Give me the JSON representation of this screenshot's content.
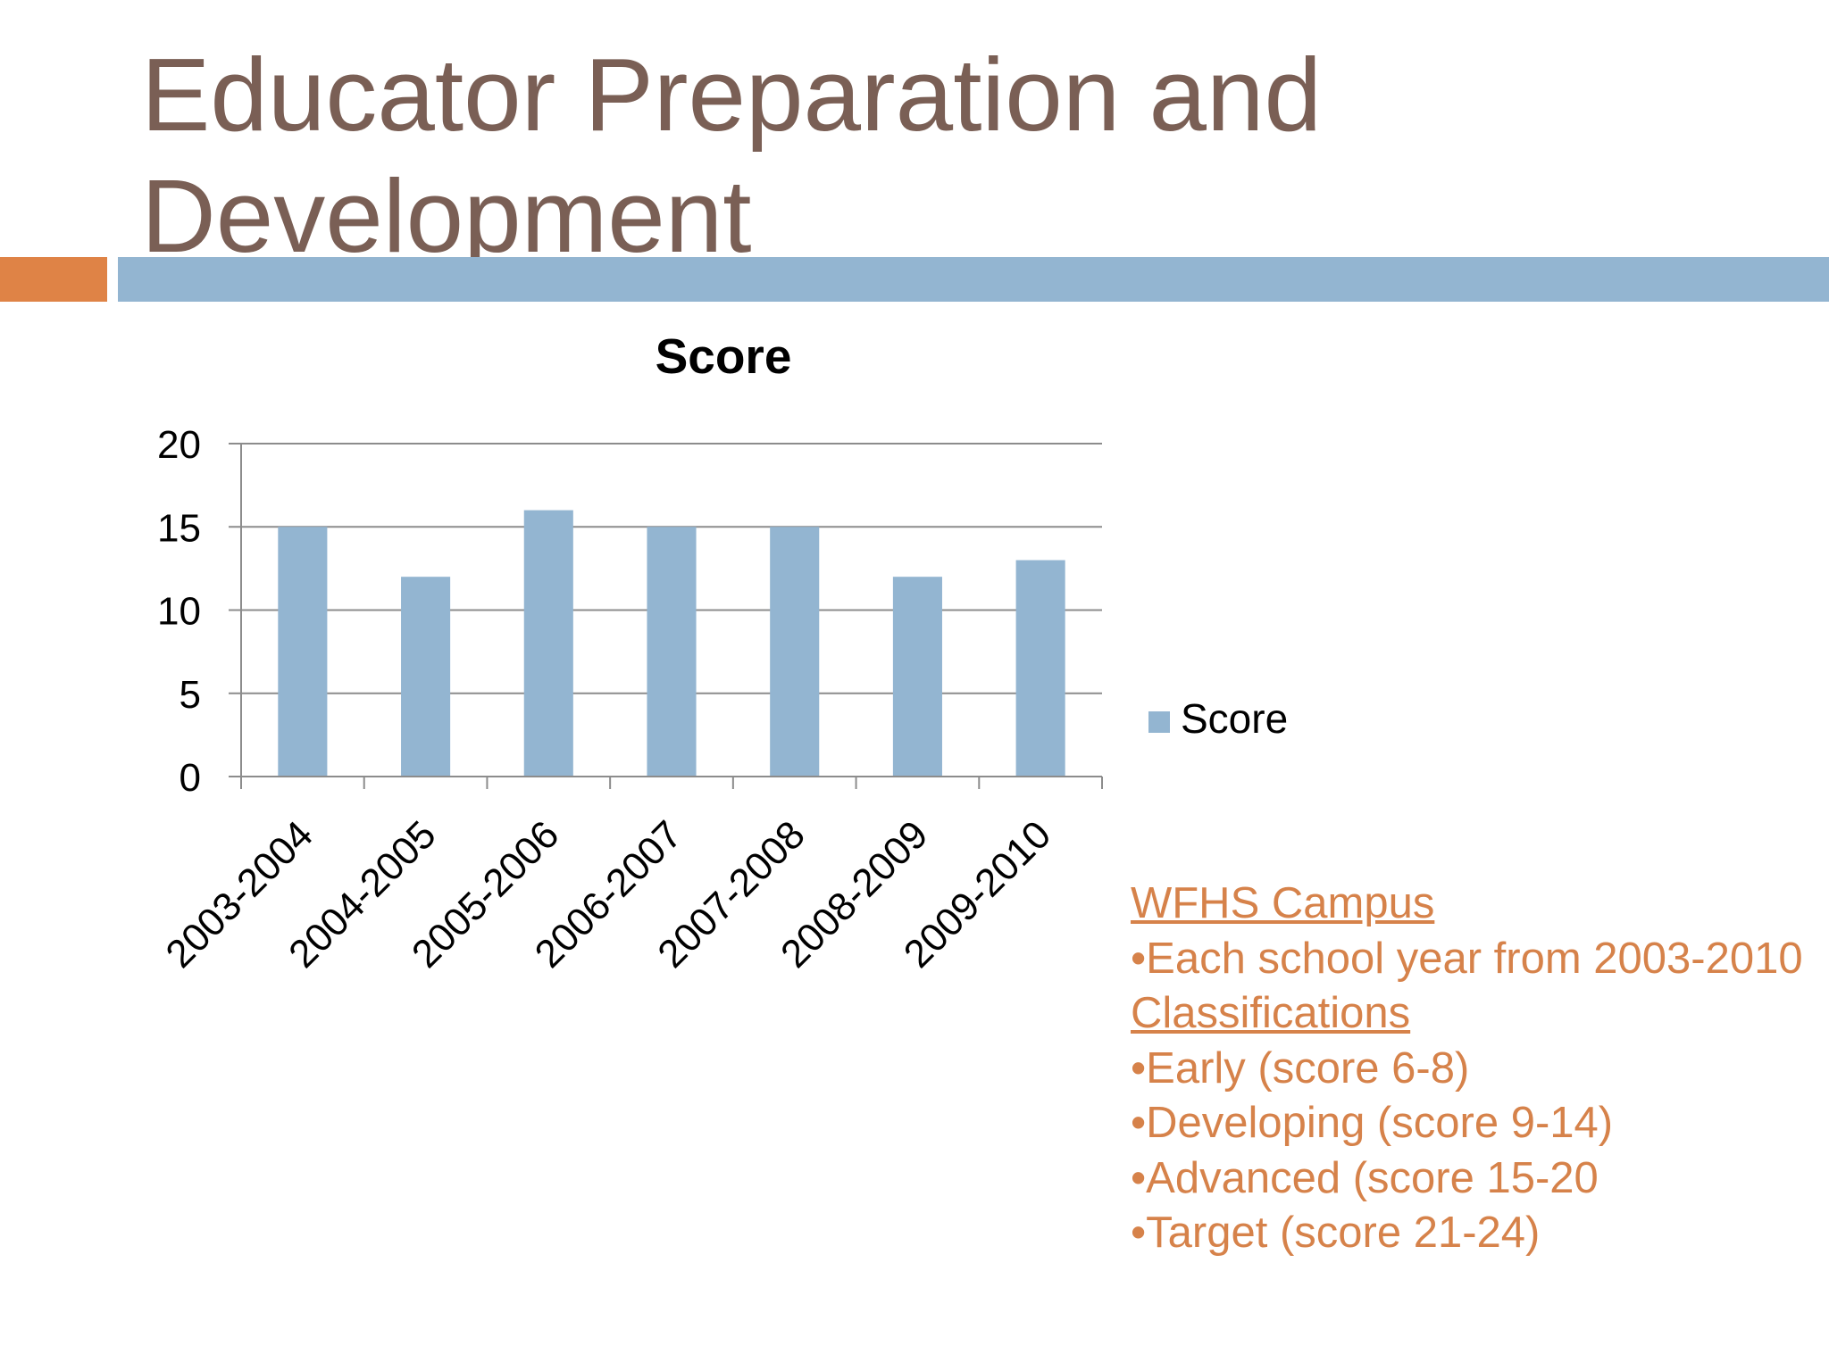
{
  "slide": {
    "title": "Educator Preparation and Development"
  },
  "colors": {
    "title": "#7a5f55",
    "accent_orange": "#df8346",
    "accent_blue": "#93b5d1",
    "bar": "#93b5d1",
    "notes_text": "#d6824a",
    "gridline": "#8c8c8c"
  },
  "chart_data": {
    "type": "bar",
    "title": "Score",
    "categories": [
      "2003-2004",
      "2004-2005",
      "2005-2006",
      "2006-2007",
      "2007-2008",
      "2008-2009",
      "2009-2010"
    ],
    "series": [
      {
        "name": "Score",
        "values": [
          15,
          12,
          16,
          15,
          15,
          12,
          13
        ]
      }
    ],
    "yticks": [
      0,
      5,
      10,
      15,
      20
    ],
    "ylim": [
      0,
      20
    ],
    "xlabel": "",
    "ylabel": "",
    "grid": true,
    "legend": "right",
    "xtick_rotation": -45
  },
  "notes": {
    "campus_heading": "WFHS Campus",
    "campus_items": [
      "•Each school year from 2003-2010"
    ],
    "classifications_heading": "Classifications",
    "classification_items": [
      "•Early (score 6-8)",
      "•Developing (score 9-14)",
      "•Advanced (score 15-20",
      "•Target (score 21-24)"
    ]
  }
}
